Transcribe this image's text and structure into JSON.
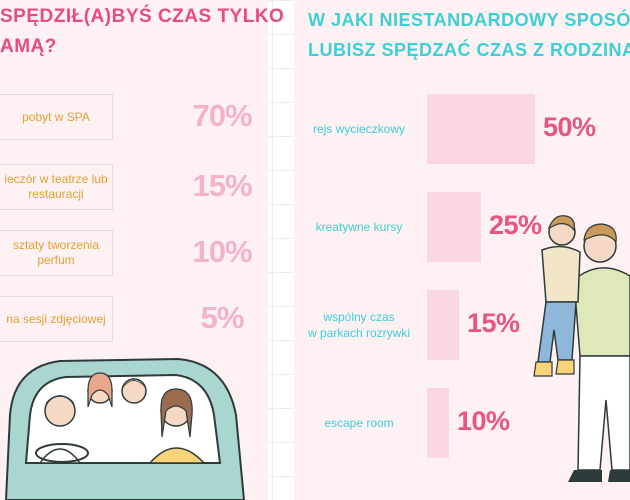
{
  "left": {
    "title_line1": "SPĘDZIŁ(A)BYŚ CZAS TYLKO",
    "title_line2": "AMĄ?"
  },
  "chart_data": [
    {
      "type": "table",
      "title": "",
      "rows": [
        {
          "label": "pobyt w SPA",
          "value": 70,
          "display": "70%"
        },
        {
          "label": "ieczór w teatrze lub restauracji",
          "value": 15,
          "display": "15%"
        },
        {
          "label": "sztaty tworzenia perfum",
          "value": 10,
          "display": "10%"
        },
        {
          "label": "na sesji zdjęciowej",
          "value": 5,
          "display": "5%"
        }
      ]
    },
    {
      "type": "bar",
      "title": "W JAKI NIESTANDARDOWY SPOSÓB LUBISZ SPĘDZAĆ CZAS Z RODZINĄ?",
      "title_line1": "W JAKI NIESTANDARDOWY SPOSÓB",
      "title_line2": "LUBISZ SPĘDZAĆ CZAS Z RODZINĄ?",
      "orientation": "horizontal",
      "categories": [
        "rejs wycieczkowy",
        "kreatywne kursy",
        "wspólny czas w parkach rozrywki",
        "escape room"
      ],
      "category_lines": [
        [
          "rejs wycieczkowy"
        ],
        [
          "kreatywne kursy"
        ],
        [
          "wspólny czas",
          "w parkach rozrywki"
        ],
        [
          "escape room"
        ]
      ],
      "values": [
        50,
        25,
        15,
        10
      ],
      "labels": [
        "50%",
        "25%",
        "15%",
        "10%"
      ],
      "xlim": [
        0,
        50
      ]
    }
  ],
  "colors": {
    "panel": "#fdf1f3",
    "left_title": "#e84a82",
    "right_title": "#3ccfd6",
    "left_label": "#e0a232",
    "left_value": "#f2b4c6",
    "right_label": "#3ccfd6",
    "bar": "#f9d7e1",
    "right_value": "#e8557d"
  }
}
